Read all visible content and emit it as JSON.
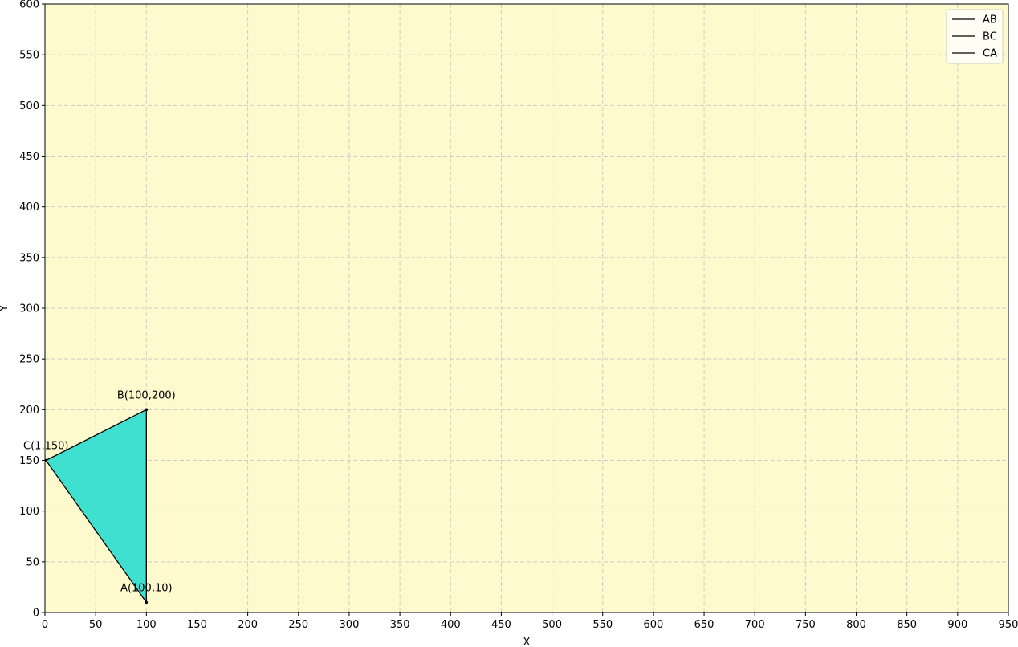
{
  "chart_data": {
    "type": "line",
    "xlabel": "X",
    "ylabel": "Y",
    "xlim": [
      0,
      950
    ],
    "ylim": [
      0,
      600
    ],
    "xticks": [
      0,
      50,
      100,
      150,
      200,
      250,
      300,
      350,
      400,
      450,
      500,
      550,
      600,
      650,
      700,
      750,
      800,
      850,
      900,
      950
    ],
    "yticks": [
      0,
      50,
      100,
      150,
      200,
      250,
      300,
      350,
      400,
      450,
      500,
      550,
      600
    ],
    "grid": true,
    "legend_position": "top-right",
    "colors": {
      "background": "#fffacd",
      "fill": "#40e0d0",
      "line": "#000000",
      "grid": "#cccccc"
    },
    "points": [
      {
        "name": "A",
        "x": 100,
        "y": 10,
        "label": "A(100,10)"
      },
      {
        "name": "B",
        "x": 100,
        "y": 200,
        "label": "B(100,200)"
      },
      {
        "name": "C",
        "x": 1,
        "y": 150,
        "label": "C(1,150)"
      }
    ],
    "series": [
      {
        "name": "AB",
        "x": [
          100,
          100
        ],
        "y": [
          10,
          200
        ]
      },
      {
        "name": "BC",
        "x": [
          100,
          1
        ],
        "y": [
          200,
          150
        ]
      },
      {
        "name": "CA",
        "x": [
          1,
          100
        ],
        "y": [
          150,
          10
        ]
      }
    ]
  }
}
